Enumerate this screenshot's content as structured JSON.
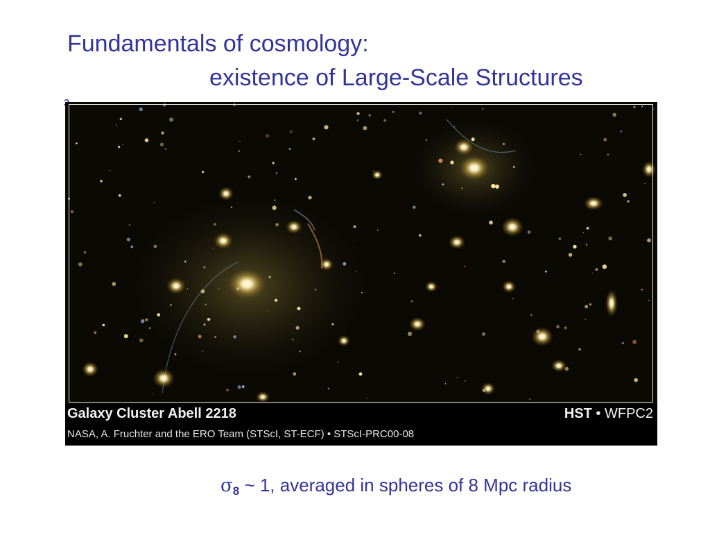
{
  "slide": {
    "title_line1": "Fundamentals of cosmology:",
    "title_line2": "existence of Large-Scale Structures",
    "bullet_mark": "ɜ"
  },
  "image": {
    "caption_title": "Galaxy Cluster Abell 2218",
    "caption_hst": "HST",
    "caption_separator": " • ",
    "caption_instrument": "WFPC2",
    "caption_credit": "NASA, A. Fruchter and the ERO Team (STScI, ST-ECF) • STScI-PRC00-08"
  },
  "footer": {
    "sigma_symbol": "σ",
    "sigma_subscript": "8",
    "text": " ~ 1, averaged in spheres of 8 Mpc radius"
  }
}
